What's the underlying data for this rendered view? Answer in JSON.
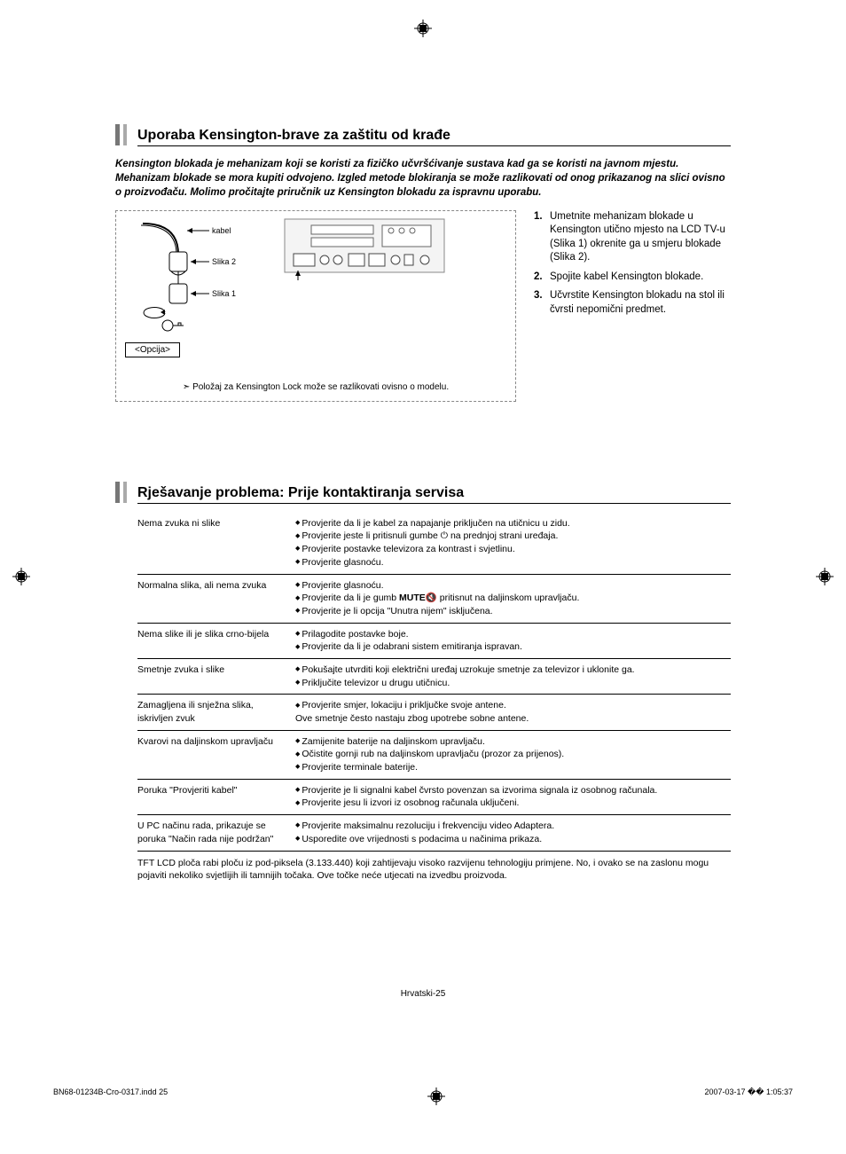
{
  "section1": {
    "title": "Uporaba Kensington-brave za zaštitu od krađe",
    "intro": "Kensington blokada je mehanizam koji se koristi za fizičko učvršćivanje sustava kad ga se koristi na javnom mjestu. Mehanizam blokade se mora kupiti odvojeno. Izgled metode blokiranja se može razlikovati od onog prikazanog na slici ovisno o proizvođaču. Molimo pročitajte priručnik uz Kensington blokadu za ispravnu uporabu.",
    "diagram": {
      "label_kabel": "kabel",
      "label_slika2": "Slika 2",
      "label_slika1": "Slika 1",
      "label_opcija": "<Opcija>",
      "note": "Položaj za Kensington Lock može se razlikovati ovisno o modelu."
    },
    "steps": [
      {
        "n": "1.",
        "t": "Umetnite mehanizam blokade u Kensington utično mjesto na LCD TV-u (Slika 1) okrenite ga u smjeru blokade (Slika 2)."
      },
      {
        "n": "2.",
        "t": "Spojite kabel Kensington blokade."
      },
      {
        "n": "3.",
        "t": "Učvrstite Kensington blokadu na stol ili čvrsti nepomični predmet."
      }
    ]
  },
  "section2": {
    "title": "Rješavanje problema: Prije kontaktiranja servisa",
    "rows": [
      {
        "p": "Nema zvuka ni slike",
        "s": [
          "Provjerite da li je kabel za napajanje priključen na utičnicu u zidu.",
          "Provjerite jeste li pritisnuli gumbe ⏻ na prednjoj strani uređaja.",
          "Provjerite postavke televizora za kontrast i svjetlinu.",
          "Provjerite glasnoću."
        ]
      },
      {
        "p": "Normalna slika, ali nema zvuka",
        "s": [
          "Provjerite glasnoću.",
          "Provjerite da li je gumb MUTE🔇 pritisnut na daljinskom upravljaču.",
          "Provjerite je li opcija \"Unutra nijem\" isključena."
        ]
      },
      {
        "p": "Nema slike ili je slika crno-bijela",
        "s": [
          "Prilagodite postavke boje.",
          "Provjerite da li je odabrani sistem emitiranja ispravan."
        ]
      },
      {
        "p": "Smetnje zvuka i slike",
        "s": [
          "Pokušajte utvrditi koji električni uređaj uzrokuje smetnje za televizor i uklonite ga.",
          "Priključite televizor u drugu utičnicu."
        ]
      },
      {
        "p": "Zamagljena ili snježna slika, iskrivljen zvuk",
        "s": [
          "Provjerite smjer, lokaciju i priključke svoje antene.\nOve smetnje često nastaju zbog upotrebe sobne antene."
        ]
      },
      {
        "p": "Kvarovi na daljinskom upravljaču",
        "s": [
          "Zamijenite baterije na daljinskom upravljaču.",
          "Očistite gornji rub na daljinskom upravljaču (prozor za prijenos).",
          "Provjerite terminale baterije."
        ]
      },
      {
        "p": "Poruka \"Provjeriti kabel\"",
        "s": [
          "Provjerite je li signalni kabel čvrsto povenzan sa izvorima signala iz osobnog računala.",
          "Provjerite jesu li izvori iz osobnog računala uključeni."
        ]
      },
      {
        "p": "U PC načinu rada, prikazuje se poruka \"Način rada nije podržan\"",
        "s": [
          "Provjerite maksimalnu rezoluciju i frekvenciju video Adaptera.",
          "Usporedite ove vrijednosti s podacima u načinima prikaza."
        ]
      }
    ],
    "note": "TFT LCD ploča rabi ploču iz pod-piksela (3.133.440) koji zahtijevaju visoko razvijenu tehnologiju primjene. No, i ovako se na zaslonu mogu pojaviti nekoliko svjetlijih ili tamnijih točaka. Ove točke neće utjecati na izvedbu proizvoda."
  },
  "footer": {
    "page_label": "Hrvatski-25",
    "print_left": "BN68-01234B-Cro-0317.indd   25",
    "print_right": "2007-03-17   �� 1:05:37"
  },
  "colors": {
    "grip1": "#777777",
    "grip2": "#aaaaaa",
    "border": "#000000",
    "dash": "#888888"
  }
}
